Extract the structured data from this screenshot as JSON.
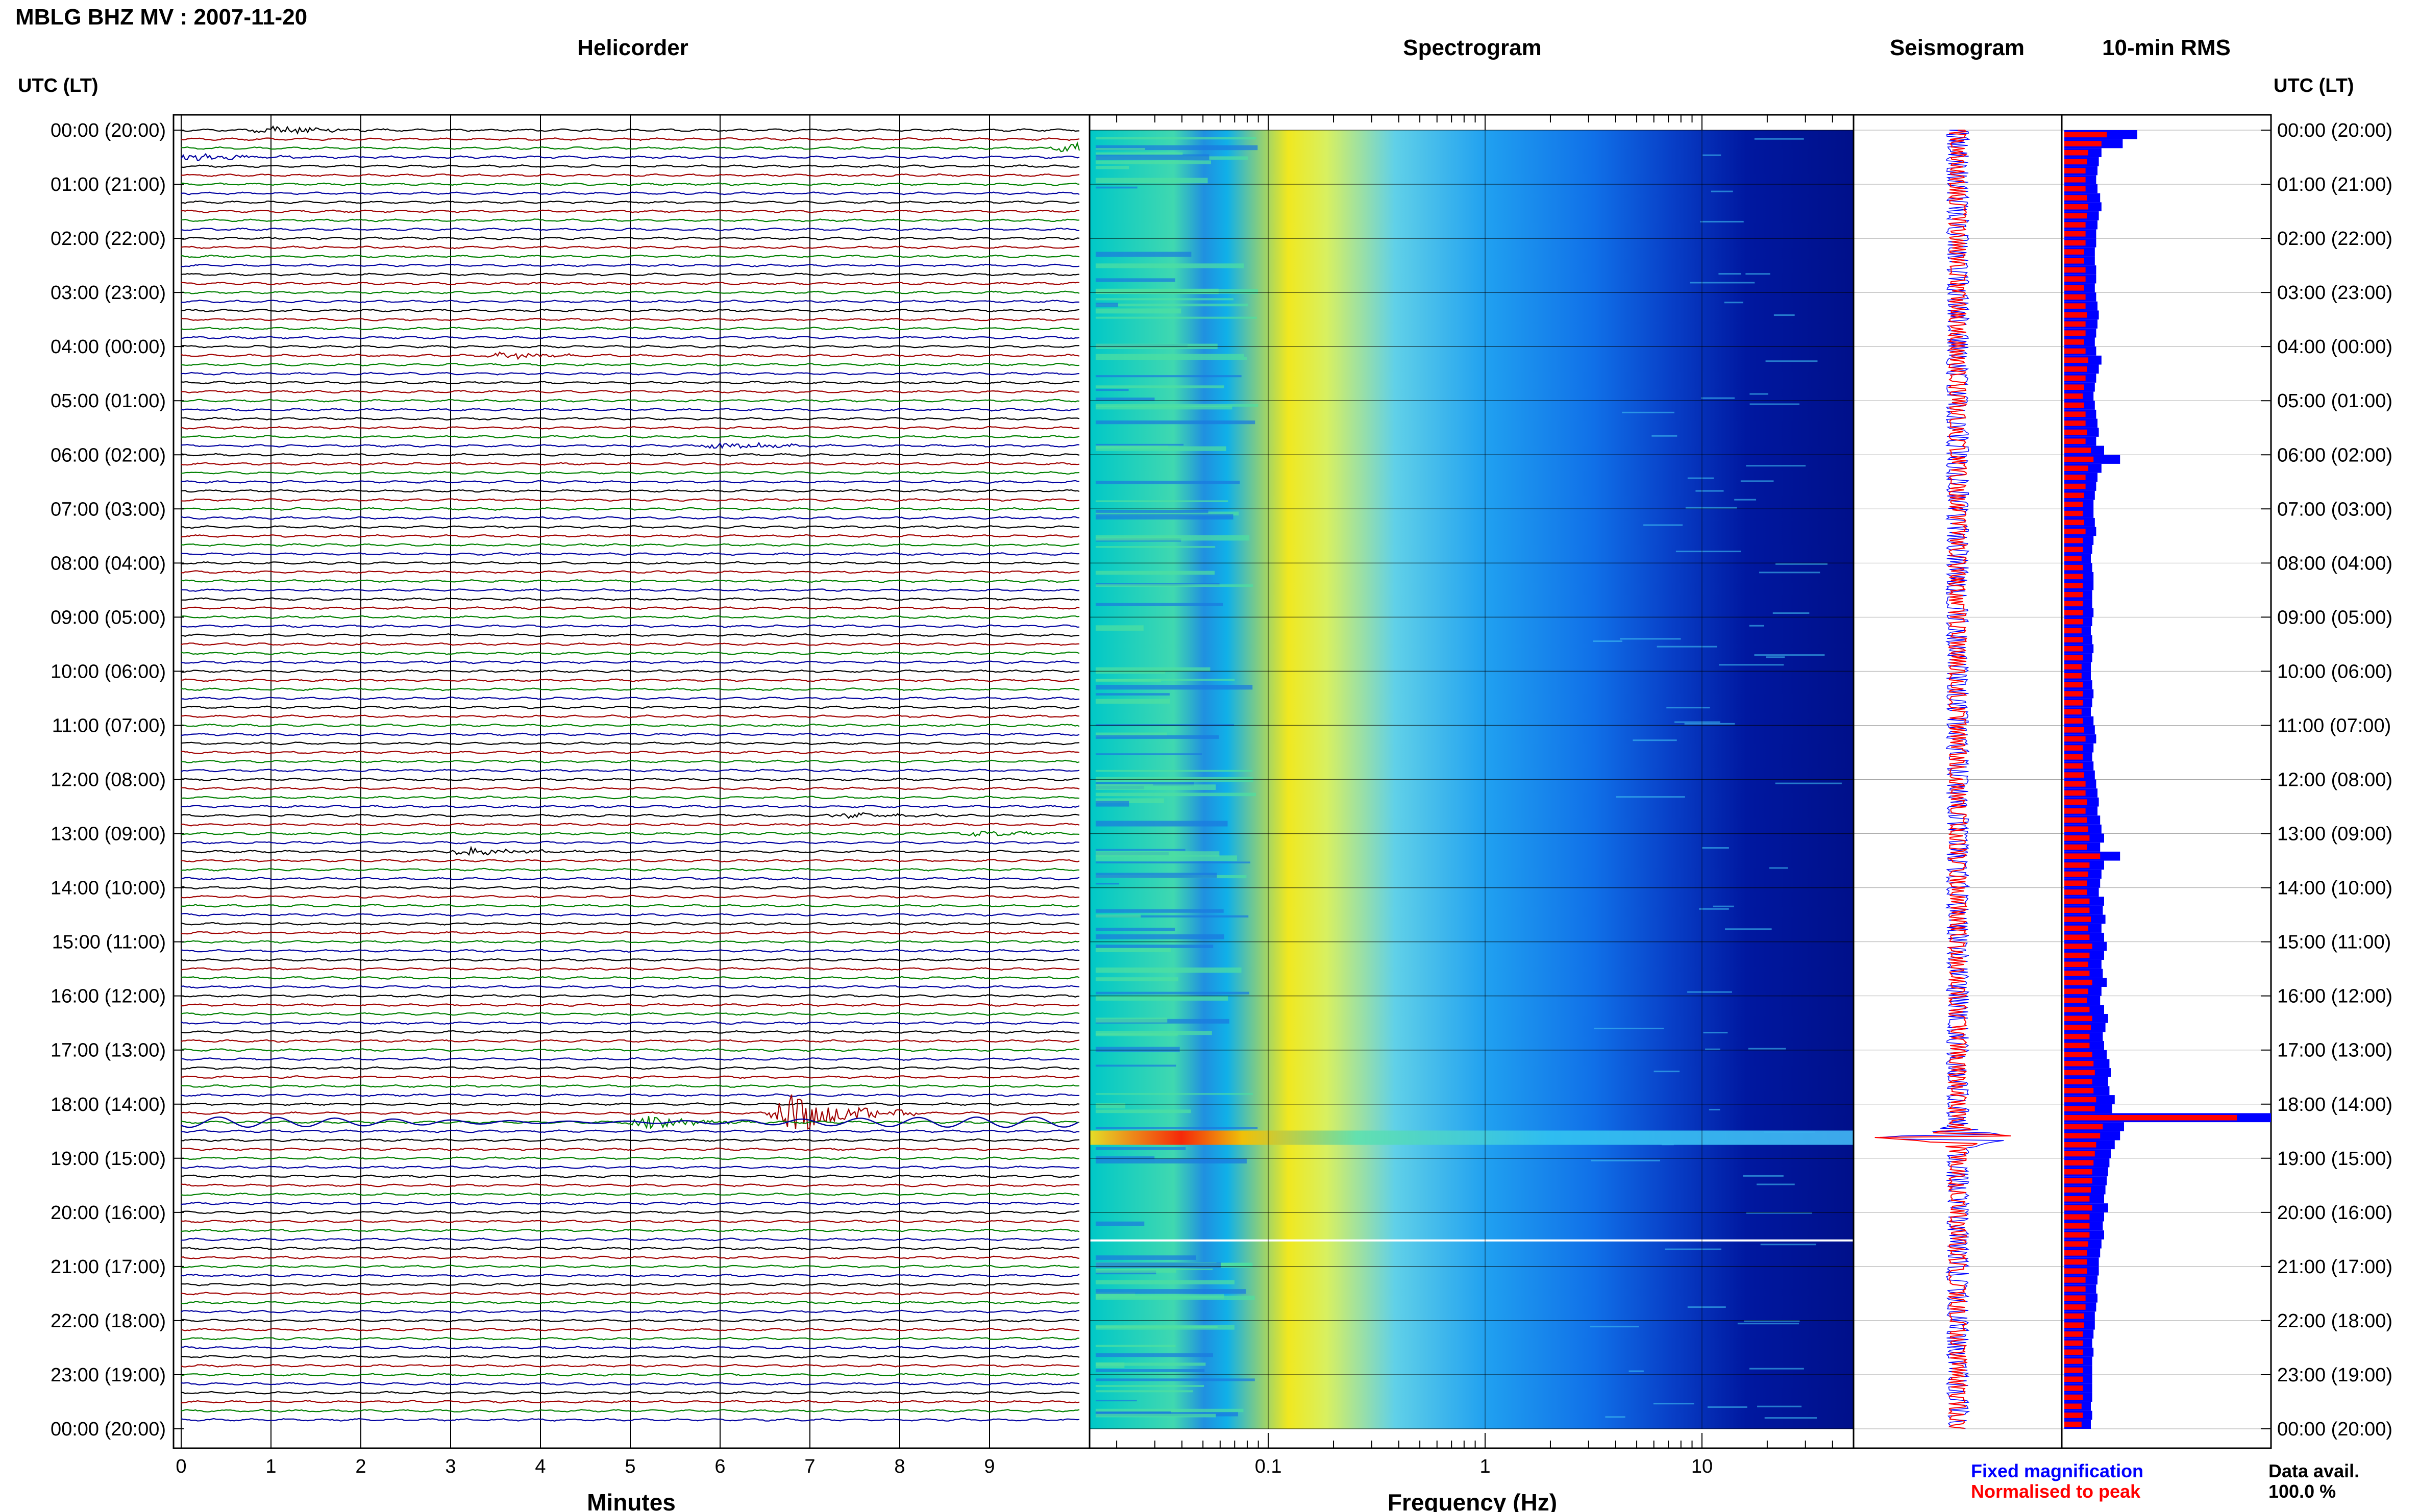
{
  "page": {
    "title": "MBLG BHZ MV : 2007-11-20",
    "left_axis_title": "UTC (LT)",
    "right_axis_title": "UTC (LT)"
  },
  "panels": {
    "helicorder": "Helicorder",
    "spectrogram": "Spectrogram",
    "seismogram": "Seismogram",
    "rms": "10-min RMS"
  },
  "time_labels": [
    "00:00 (20:00)",
    "01:00 (21:00)",
    "02:00 (22:00)",
    "03:00 (23:00)",
    "04:00 (00:00)",
    "05:00 (01:00)",
    "06:00 (02:00)",
    "07:00 (03:00)",
    "08:00 (04:00)",
    "09:00 (05:00)",
    "10:00 (06:00)",
    "11:00 (07:00)",
    "12:00 (08:00)",
    "13:00 (09:00)",
    "14:00 (10:00)",
    "15:00 (11:00)",
    "16:00 (12:00)",
    "17:00 (13:00)",
    "18:00 (14:00)",
    "19:00 (15:00)",
    "20:00 (16:00)",
    "21:00 (17:00)",
    "22:00 (18:00)",
    "23:00 (19:00)",
    "00:00 (20:00)"
  ],
  "legend": {
    "fixed": "Fixed magnification",
    "normalised": "Normalised to peak",
    "avail_label": "Data avail.",
    "avail_value": "100.0 %"
  },
  "colors": {
    "trace_cycle": [
      "#000000",
      "#a00000",
      "#008000",
      "#0000a0"
    ],
    "rms_fixed": "#0000ff",
    "rms_normalised": "#ff0000",
    "seis_red": "#ff0000",
    "seis_blue": "#0000ff"
  },
  "chart_data": [
    {
      "type": "line",
      "panel": "Helicorder",
      "xlabel": "Minutes",
      "x_ticks": [
        "0",
        "1",
        "2",
        "3",
        "4",
        "5",
        "6",
        "7",
        "8",
        "9"
      ],
      "xlim": [
        0,
        10
      ],
      "rows_per_hour": 6,
      "rows": 144,
      "events": [
        {
          "row": 0,
          "minute": 1.0,
          "amp": 3.0
        },
        {
          "row": 3,
          "minute": 0.1,
          "amp": 2.5
        },
        {
          "row": 2,
          "minute": 9.9,
          "amp": 3.0
        },
        {
          "row": 25,
          "minute": 3.6,
          "amp": 1.8
        },
        {
          "row": 35,
          "minute": 6.0,
          "amp": 2.2
        },
        {
          "row": 80,
          "minute": 3.2,
          "amp": 2.5
        },
        {
          "row": 76,
          "minute": 7.4,
          "amp": 1.5
        },
        {
          "row": 78,
          "minute": 8.9,
          "amp": 1.5
        },
        {
          "row": 109,
          "minute": 6.8,
          "amp": 12.0
        },
        {
          "row": 110,
          "minute": 5.2,
          "amp": 3.5
        }
      ]
    },
    {
      "type": "heatmap",
      "panel": "Spectrogram",
      "xlabel": "Frequency (Hz)",
      "x_ticks": [
        "0.1",
        "1",
        "10"
      ],
      "xscale": "log",
      "xlim": [
        0.015,
        50
      ]
    },
    {
      "type": "line",
      "panel": "Seismogram",
      "peak_hour": 18.6
    },
    {
      "type": "bar",
      "panel": "10-min RMS",
      "orientation": "horizontal",
      "series": [
        {
          "name": "Fixed magnification",
          "values": [
            0.55,
            0.44,
            0.28,
            0.26,
            0.25,
            0.24,
            0.25,
            0.27,
            0.28,
            0.26,
            0.25,
            0.24,
            0.24,
            0.23,
            0.23,
            0.24,
            0.24,
            0.23,
            0.24,
            0.25,
            0.26,
            0.25,
            0.24,
            0.23,
            0.24,
            0.28,
            0.26,
            0.24,
            0.23,
            0.22,
            0.23,
            0.24,
            0.25,
            0.26,
            0.24,
            0.3,
            0.42,
            0.28,
            0.25,
            0.24,
            0.23,
            0.22,
            0.22,
            0.23,
            0.24,
            0.22,
            0.21,
            0.2,
            0.21,
            0.22,
            0.22,
            0.21,
            0.21,
            0.22,
            0.21,
            0.2,
            0.21,
            0.22,
            0.21,
            0.2,
            0.2,
            0.21,
            0.22,
            0.21,
            0.2,
            0.22,
            0.23,
            0.24,
            0.22,
            0.21,
            0.22,
            0.23,
            0.24,
            0.25,
            0.26,
            0.25,
            0.27,
            0.28,
            0.3,
            0.27,
            0.42,
            0.3,
            0.28,
            0.27,
            0.26,
            0.3,
            0.29,
            0.31,
            0.28,
            0.3,
            0.32,
            0.3,
            0.28,
            0.29,
            0.32,
            0.28,
            0.27,
            0.3,
            0.33,
            0.31,
            0.29,
            0.3,
            0.32,
            0.34,
            0.35,
            0.33,
            0.34,
            0.38,
            0.36,
            1.6,
            0.45,
            0.42,
            0.38,
            0.35,
            0.34,
            0.33,
            0.32,
            0.31,
            0.3,
            0.33,
            0.3,
            0.29,
            0.3,
            0.28,
            0.27,
            0.26,
            0.26,
            0.25,
            0.24,
            0.25,
            0.24,
            0.23,
            0.23,
            0.22,
            0.21,
            0.22,
            0.21,
            0.21,
            0.21,
            0.21,
            0.21,
            0.2,
            0.21,
            0.2
          ]
        },
        {
          "name": "Normalised to peak",
          "values": [
            0.32,
            0.28,
            0.18,
            0.17,
            0.16,
            0.16,
            0.16,
            0.17,
            0.18,
            0.17,
            0.16,
            0.16,
            0.16,
            0.15,
            0.15,
            0.16,
            0.16,
            0.15,
            0.16,
            0.16,
            0.17,
            0.16,
            0.16,
            0.15,
            0.16,
            0.18,
            0.17,
            0.16,
            0.15,
            0.14,
            0.15,
            0.16,
            0.16,
            0.17,
            0.16,
            0.2,
            0.22,
            0.18,
            0.16,
            0.16,
            0.15,
            0.14,
            0.14,
            0.15,
            0.16,
            0.14,
            0.14,
            0.13,
            0.14,
            0.14,
            0.14,
            0.14,
            0.14,
            0.14,
            0.14,
            0.13,
            0.14,
            0.14,
            0.14,
            0.13,
            0.13,
            0.14,
            0.14,
            0.14,
            0.13,
            0.14,
            0.15,
            0.16,
            0.14,
            0.14,
            0.14,
            0.15,
            0.16,
            0.16,
            0.17,
            0.16,
            0.17,
            0.18,
            0.19,
            0.17,
            0.27,
            0.19,
            0.18,
            0.17,
            0.17,
            0.19,
            0.19,
            0.2,
            0.18,
            0.19,
            0.21,
            0.19,
            0.18,
            0.19,
            0.21,
            0.18,
            0.17,
            0.19,
            0.21,
            0.2,
            0.19,
            0.19,
            0.21,
            0.22,
            0.23,
            0.21,
            0.22,
            0.24,
            0.23,
            1.3,
            0.29,
            0.27,
            0.24,
            0.23,
            0.22,
            0.21,
            0.21,
            0.2,
            0.19,
            0.21,
            0.19,
            0.19,
            0.19,
            0.18,
            0.17,
            0.17,
            0.17,
            0.16,
            0.16,
            0.16,
            0.16,
            0.15,
            0.15,
            0.14,
            0.14,
            0.14,
            0.14,
            0.14,
            0.14,
            0.14,
            0.14,
            0.13,
            0.14,
            0.13
          ]
        }
      ]
    }
  ]
}
